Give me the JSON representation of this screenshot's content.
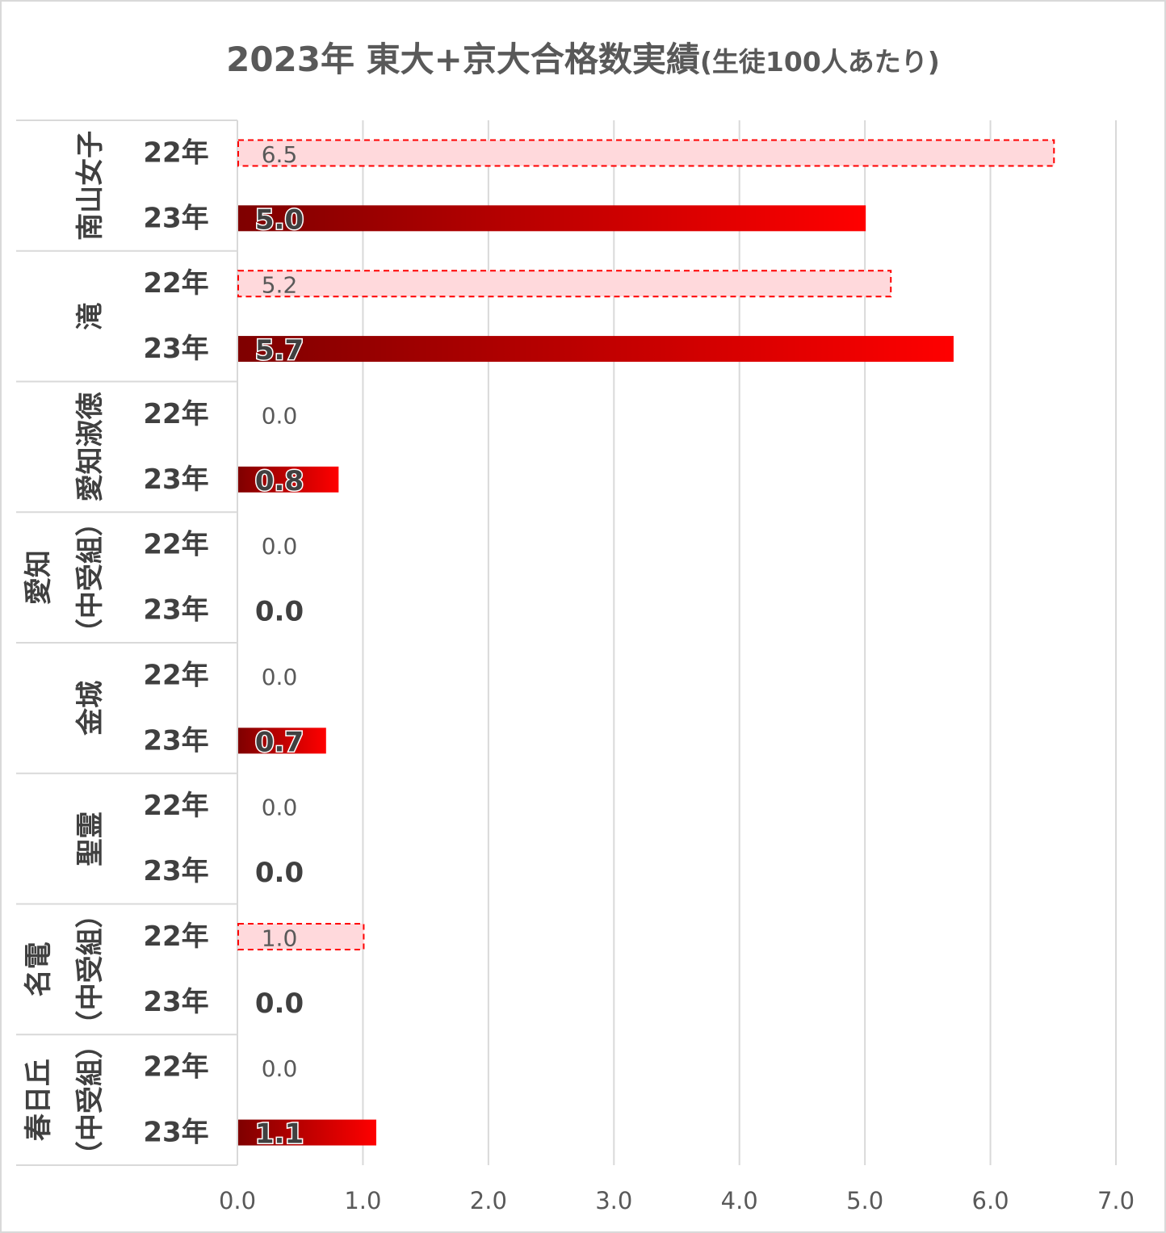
{
  "chart_data": {
    "type": "bar",
    "orientation": "horizontal",
    "title_main": "2023年 東大+京大合格数実績",
    "title_sub": "(生徒100人あたり)",
    "xlim": [
      0,
      7
    ],
    "x_ticks": [
      "0.0",
      "1.0",
      "2.0",
      "3.0",
      "4.0",
      "5.0",
      "6.0",
      "7.0"
    ],
    "grid": true,
    "groups": [
      {
        "name": "南山女子",
        "lines": [
          "南山女子"
        ],
        "rows": [
          {
            "year": "22年",
            "value": 6.5,
            "label": "6.5"
          },
          {
            "year": "23年",
            "value": 5.0,
            "label": "5.0"
          }
        ]
      },
      {
        "name": "滝",
        "lines": [
          "滝"
        ],
        "rows": [
          {
            "year": "22年",
            "value": 5.2,
            "label": "5.2"
          },
          {
            "year": "23年",
            "value": 5.7,
            "label": "5.7"
          }
        ]
      },
      {
        "name": "愛知淑徳",
        "lines": [
          "愛知淑徳"
        ],
        "rows": [
          {
            "year": "22年",
            "value": 0.0,
            "label": "0.0"
          },
          {
            "year": "23年",
            "value": 0.8,
            "label": "0.8"
          }
        ]
      },
      {
        "name": "愛知（中受組）",
        "lines": [
          "愛知",
          "（中受組）"
        ],
        "rows": [
          {
            "year": "22年",
            "value": 0.0,
            "label": "0.0"
          },
          {
            "year": "23年",
            "value": 0.0,
            "label": "0.0"
          }
        ]
      },
      {
        "name": "金城",
        "lines": [
          "金城"
        ],
        "rows": [
          {
            "year": "22年",
            "value": 0.0,
            "label": "0.0"
          },
          {
            "year": "23年",
            "value": 0.7,
            "label": "0.7"
          }
        ]
      },
      {
        "name": "聖霊",
        "lines": [
          "聖霊"
        ],
        "rows": [
          {
            "year": "22年",
            "value": 0.0,
            "label": "0.0"
          },
          {
            "year": "23年",
            "value": 0.0,
            "label": "0.0"
          }
        ]
      },
      {
        "name": "名電（中受組）",
        "lines": [
          "名電",
          "（中受組）"
        ],
        "rows": [
          {
            "year": "22年",
            "value": 1.0,
            "label": "1.0"
          },
          {
            "year": "23年",
            "value": 0.0,
            "label": "0.0"
          }
        ]
      },
      {
        "name": "春日丘（中受組）",
        "lines": [
          "春日丘",
          "（中受組）"
        ],
        "rows": [
          {
            "year": "22年",
            "value": 0.0,
            "label": "0.0"
          },
          {
            "year": "23年",
            "value": 1.1,
            "label": "1.1"
          }
        ]
      }
    ],
    "colors": {
      "prev_fill": "#ffd9dc",
      "prev_border": "#ff0000",
      "curr_dark": "#7f0000",
      "curr_bright": "#ff0000",
      "grid": "#d9d9d9",
      "text": "#404040"
    }
  }
}
